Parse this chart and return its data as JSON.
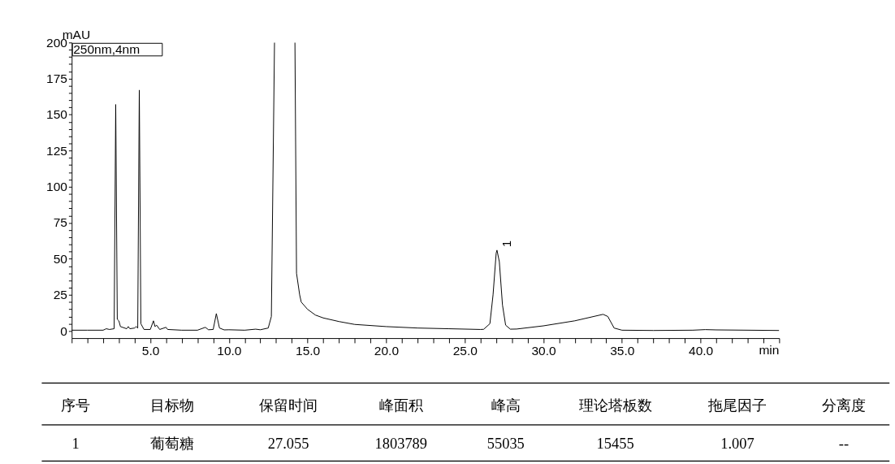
{
  "chart_data": [
    {
      "type": "line",
      "ylabel": "mAU",
      "xlabel": "min",
      "color": "#000000",
      "annotations": [
        "250nm,4nm",
        {
          "text": "1",
          "x": 27.05,
          "y": 56
        }
      ],
      "x": [
        0,
        1,
        2,
        2.2,
        2.4,
        2.7,
        2.8,
        2.9,
        3.0,
        3.1,
        3.5,
        3.6,
        3.7,
        4.0,
        4.1,
        4.2,
        4.3,
        4.4,
        4.6,
        5.0,
        5.2,
        5.3,
        5.4,
        5.6,
        6.0,
        6.1,
        7,
        8,
        8.5,
        8.7,
        9.0,
        9.2,
        9.4,
        9.7,
        10,
        11,
        11.7,
        12,
        12.5,
        12.7,
        12.9,
        13.5,
        14.2,
        14.3,
        14.5,
        14.6,
        15,
        15.5,
        16,
        17,
        18,
        20,
        22,
        24,
        26,
        26.2,
        26.6,
        26.8,
        27.0,
        27.05,
        27.2,
        27.4,
        27.6,
        27.9,
        28.3,
        30,
        32,
        33.8,
        34.1,
        34.5,
        35,
        37,
        39.5,
        40.3,
        41,
        45
      ],
      "values": [
        0.5,
        0.5,
        0.5,
        1.5,
        1,
        1.5,
        157,
        8,
        7,
        3,
        1.5,
        3,
        1.5,
        2,
        3,
        2,
        167,
        5,
        1,
        1,
        7,
        3,
        4,
        1,
        2.5,
        1,
        0.5,
        0.5,
        2.5,
        0.8,
        1,
        12,
        2,
        0.7,
        0.8,
        0.5,
        1.2,
        0.8,
        2,
        10,
        200,
        null,
        200,
        40,
        25,
        20,
        15,
        11,
        9,
        6.5,
        4.5,
        3,
        2,
        1.5,
        1,
        1.1,
        5,
        25,
        54,
        56,
        48,
        18,
        4,
        1.2,
        1.3,
        3.5,
        7,
        11.5,
        10,
        2,
        0.5,
        0.3,
        0.5,
        0.9,
        0.7,
        0.3
      ],
      "xlim": [
        0,
        45
      ],
      "xticks": [
        {
          "value": 0,
          "label": null
        },
        {
          "value": 1,
          "label": null
        },
        {
          "value": 2,
          "label": null
        },
        {
          "value": 3,
          "label": null
        },
        {
          "value": 4,
          "label": null
        },
        {
          "value": 5,
          "label": "5.0"
        },
        {
          "value": 6,
          "label": null
        },
        {
          "value": 7,
          "label": null
        },
        {
          "value": 8,
          "label": null
        },
        {
          "value": 9,
          "label": null
        },
        {
          "value": 10,
          "label": "10.0"
        },
        {
          "value": 11,
          "label": null
        },
        {
          "value": 12,
          "label": null
        },
        {
          "value": 13,
          "label": null
        },
        {
          "value": 14,
          "label": null
        },
        {
          "value": 15,
          "label": "15.0"
        },
        {
          "value": 16,
          "label": null
        },
        {
          "value": 17,
          "label": null
        },
        {
          "value": 18,
          "label": null
        },
        {
          "value": 19,
          "label": null
        },
        {
          "value": 20,
          "label": "20.0"
        },
        {
          "value": 21,
          "label": null
        },
        {
          "value": 22,
          "label": null
        },
        {
          "value": 23,
          "label": null
        },
        {
          "value": 24,
          "label": null
        },
        {
          "value": 25,
          "label": "25.0"
        },
        {
          "value": 26,
          "label": null
        },
        {
          "value": 27,
          "label": null
        },
        {
          "value": 28,
          "label": null
        },
        {
          "value": 29,
          "label": null
        },
        {
          "value": 30,
          "label": "30.0"
        },
        {
          "value": 31,
          "label": null
        },
        {
          "value": 32,
          "label": null
        },
        {
          "value": 33,
          "label": null
        },
        {
          "value": 34,
          "label": null
        },
        {
          "value": 35,
          "label": "35.0"
        },
        {
          "value": 36,
          "label": null
        },
        {
          "value": 37,
          "label": null
        },
        {
          "value": 38,
          "label": null
        },
        {
          "value": 39,
          "label": null
        },
        {
          "value": 40,
          "label": "40.0"
        },
        {
          "value": 41,
          "label": null
        },
        {
          "value": 42,
          "label": null
        },
        {
          "value": 43,
          "label": null
        },
        {
          "value": 44,
          "label": null
        },
        {
          "value": 45,
          "label": null
        }
      ],
      "ylim": [
        -5,
        200
      ],
      "yticks": [
        0,
        {
          "value": 5,
          "label": null
        },
        {
          "value": 10,
          "label": null
        },
        {
          "value": 15,
          "label": null
        },
        {
          "value": 20,
          "label": null
        },
        25,
        {
          "value": 30,
          "label": null
        },
        {
          "value": 35,
          "label": null
        },
        {
          "value": 40,
          "label": null
        },
        {
          "value": 45,
          "label": null
        },
        50,
        {
          "value": 55,
          "label": null
        },
        {
          "value": 60,
          "label": null
        },
        {
          "value": 65,
          "label": null
        },
        {
          "value": 70,
          "label": null
        },
        75,
        {
          "value": 80,
          "label": null
        },
        {
          "value": 85,
          "label": null
        },
        {
          "value": 90,
          "label": null
        },
        {
          "value": 95,
          "label": null
        },
        100,
        {
          "value": 105,
          "label": null
        },
        {
          "value": 110,
          "label": null
        },
        {
          "value": 115,
          "label": null
        },
        {
          "value": 120,
          "label": null
        },
        125,
        {
          "value": 130,
          "label": null
        },
        {
          "value": 135,
          "label": null
        },
        {
          "value": 140,
          "label": null
        },
        {
          "value": 145,
          "label": null
        },
        150,
        {
          "value": 155,
          "label": null
        },
        {
          "value": 160,
          "label": null
        },
        {
          "value": 165,
          "label": null
        },
        {
          "value": 170,
          "label": null
        },
        175,
        {
          "value": 180,
          "label": null
        },
        {
          "value": 185,
          "label": null
        },
        {
          "value": 190,
          "label": null
        },
        {
          "value": 195,
          "label": null
        },
        200
      ],
      "grid": false
    },
    {
      "type": "other",
      "annotations": [
        "序号",
        "目标物",
        "保留时间",
        "峰面积",
        "峰高",
        "理论塔板数",
        "拖尾因子",
        "分离度",
        "1",
        "葡萄糖",
        "27.055",
        "1803789",
        "55035",
        "15455",
        "1.007",
        "--"
      ]
    }
  ]
}
